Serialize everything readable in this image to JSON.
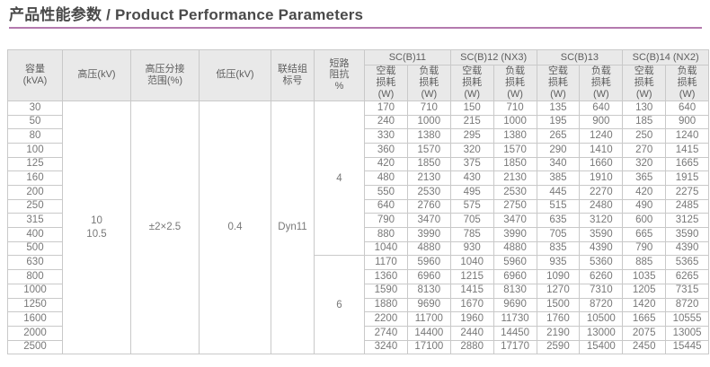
{
  "page": {
    "title": "产品性能参数 / Product Performance Parameters"
  },
  "colors": {
    "accent_underline": "#b479ae",
    "header_background": "#e9e9e9",
    "table_border": "#c9c9c9"
  },
  "table": {
    "left_headers": [
      {
        "id": "capacity",
        "label": "容量\n(kVA)"
      },
      {
        "id": "hv",
        "label": "高压(kV)"
      },
      {
        "id": "tap_range",
        "label": "高压分接\n范围(%)"
      },
      {
        "id": "lv",
        "label": "低压(kV)"
      },
      {
        "id": "vector_group",
        "label": "联结组\n标号"
      },
      {
        "id": "impedance",
        "label": "短路\n阻抗\n%"
      }
    ],
    "product_groups": [
      "SC(B)11",
      "SC(B)12 (NX3)",
      "SC(B)13",
      "SC(B)14 (NX2)"
    ],
    "loss_headers": [
      "空载\n损耗\n(W)",
      "负载\n损耗\n(W)"
    ],
    "shared_values": {
      "hv": "10\n10.5",
      "tap_range": "±2×2.5",
      "lv": "0.4",
      "vector_group": "Dyn11"
    },
    "impedance_blocks": [
      {
        "value": "4",
        "row_span": 11
      },
      {
        "value": "6",
        "row_span": 7
      }
    ],
    "rows": [
      {
        "capacity_kva": "30",
        "losses_w": [
          "170",
          "710",
          "150",
          "710",
          "135",
          "640",
          "130",
          "640"
        ]
      },
      {
        "capacity_kva": "50",
        "losses_w": [
          "240",
          "1000",
          "215",
          "1000",
          "195",
          "900",
          "185",
          "900"
        ]
      },
      {
        "capacity_kva": "80",
        "losses_w": [
          "330",
          "1380",
          "295",
          "1380",
          "265",
          "1240",
          "250",
          "1240"
        ]
      },
      {
        "capacity_kva": "100",
        "losses_w": [
          "360",
          "1570",
          "320",
          "1570",
          "290",
          "1410",
          "270",
          "1415"
        ]
      },
      {
        "capacity_kva": "125",
        "losses_w": [
          "420",
          "1850",
          "375",
          "1850",
          "340",
          "1660",
          "320",
          "1665"
        ]
      },
      {
        "capacity_kva": "160",
        "losses_w": [
          "480",
          "2130",
          "430",
          "2130",
          "385",
          "1910",
          "365",
          "1915"
        ]
      },
      {
        "capacity_kva": "200",
        "losses_w": [
          "550",
          "2530",
          "495",
          "2530",
          "445",
          "2270",
          "420",
          "2275"
        ]
      },
      {
        "capacity_kva": "250",
        "losses_w": [
          "640",
          "2760",
          "575",
          "2750",
          "515",
          "2480",
          "490",
          "2485"
        ]
      },
      {
        "capacity_kva": "315",
        "losses_w": [
          "790",
          "3470",
          "705",
          "3470",
          "635",
          "3120",
          "600",
          "3125"
        ]
      },
      {
        "capacity_kva": "400",
        "losses_w": [
          "880",
          "3990",
          "785",
          "3990",
          "705",
          "3590",
          "665",
          "3590"
        ]
      },
      {
        "capacity_kva": "500",
        "losses_w": [
          "1040",
          "4880",
          "930",
          "4880",
          "835",
          "4390",
          "790",
          "4390"
        ]
      },
      {
        "capacity_kva": "630",
        "losses_w": [
          "1170",
          "5960",
          "1040",
          "5960",
          "935",
          "5360",
          "885",
          "5365"
        ]
      },
      {
        "capacity_kva": "800",
        "losses_w": [
          "1360",
          "6960",
          "1215",
          "6960",
          "1090",
          "6260",
          "1035",
          "6265"
        ]
      },
      {
        "capacity_kva": "1000",
        "losses_w": [
          "1590",
          "8130",
          "1415",
          "8130",
          "1270",
          "7310",
          "1205",
          "7315"
        ]
      },
      {
        "capacity_kva": "1250",
        "losses_w": [
          "1880",
          "9690",
          "1670",
          "9690",
          "1500",
          "8720",
          "1420",
          "8720"
        ]
      },
      {
        "capacity_kva": "1600",
        "losses_w": [
          "2200",
          "11700",
          "1960",
          "11730",
          "1760",
          "10500",
          "1665",
          "10555"
        ]
      },
      {
        "capacity_kva": "2000",
        "losses_w": [
          "2740",
          "14400",
          "2440",
          "14450",
          "2190",
          "13000",
          "2075",
          "13005"
        ]
      },
      {
        "capacity_kva": "2500",
        "losses_w": [
          "3240",
          "17100",
          "2880",
          "17170",
          "2590",
          "15400",
          "2450",
          "15445"
        ]
      }
    ]
  }
}
